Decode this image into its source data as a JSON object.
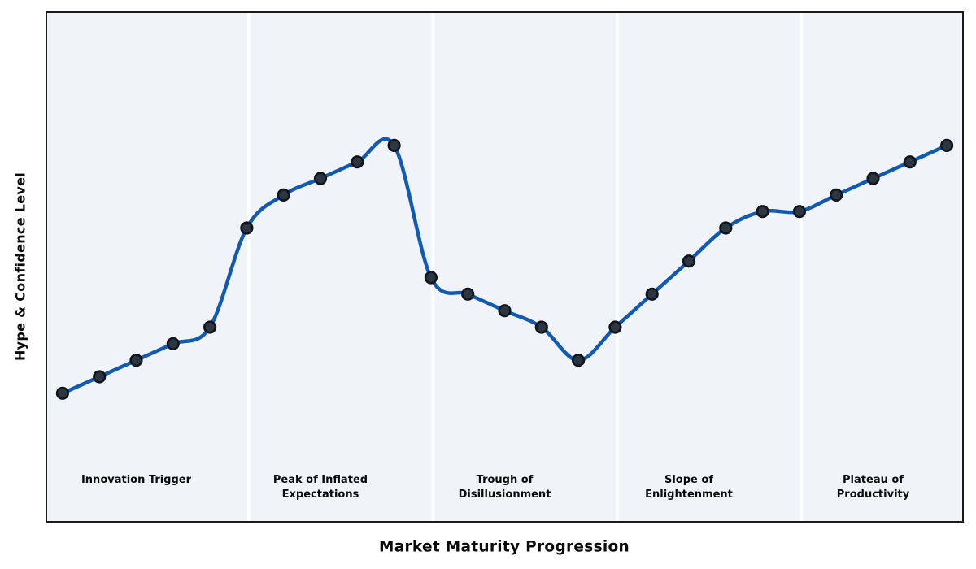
{
  "chart_data": {
    "type": "line",
    "title": "",
    "xlabel": "Market Maturity Progression",
    "ylabel": "Hype & Confidence Level",
    "x": [
      0,
      1,
      2,
      3,
      4,
      5,
      6,
      7,
      8,
      9,
      10,
      11,
      12,
      13,
      14,
      15,
      16,
      17,
      18,
      19,
      20,
      21,
      22,
      23,
      24
    ],
    "values": [
      10,
      15,
      20,
      25,
      30,
      60,
      70,
      75,
      80,
      85,
      45,
      40,
      35,
      30,
      20,
      30,
      40,
      50,
      60,
      65,
      65,
      70,
      75,
      80,
      85
    ],
    "series_name": "Hype & Confidence Level",
    "smoothing": "cubic-spline",
    "grid": false,
    "legend": "none",
    "tick_labels": "none",
    "xlim": [
      -0.44,
      24.44
    ],
    "ylim": [
      -28.9,
      125.3
    ],
    "band_dividers_x": [
      5,
      10,
      15,
      20
    ],
    "phases": [
      {
        "label": "Innovation Trigger",
        "center_x": 2
      },
      {
        "label": "Peak of Inflated\nExpectations",
        "center_x": 7
      },
      {
        "label": "Trough of\nDisillusionment",
        "center_x": 12
      },
      {
        "label": "Slope of\nEnlightenment",
        "center_x": 17
      },
      {
        "label": "Plateau of\nProductivity",
        "center_x": 22
      }
    ],
    "colors": {
      "line": "#1259b0",
      "marker_fill": "#2b3642",
      "marker_edge": "#10151c",
      "plot_background": "#f0f4f8",
      "band_divider": "#ffffff",
      "frame": "#1a1a1a",
      "text": "#0a0a0a",
      "page_background": "#ffffff"
    }
  }
}
